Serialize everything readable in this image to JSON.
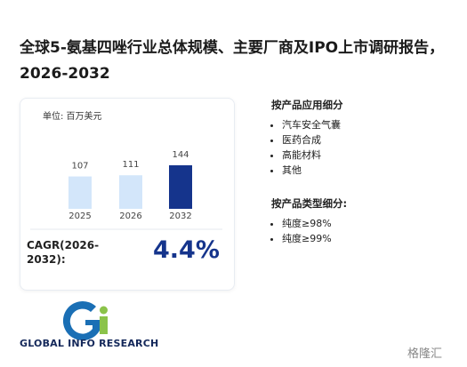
{
  "title": "全球5-氨基四唑行业总体规模、主要厂商及IPO上市调研报告，2026-2032",
  "chart_data": {
    "type": "bar",
    "unit": "单位: 百万美元",
    "categories": [
      "2025",
      "2026",
      "2032"
    ],
    "values": [
      107,
      111,
      144
    ],
    "colors": [
      "#d3e6fa",
      "#d3e6fa",
      "#15348c"
    ]
  },
  "cagr": {
    "label": "CAGR(2026-2032):",
    "value": "4.4%"
  },
  "segments": [
    {
      "heading": "按产品应用细分",
      "items": [
        "汽车安全气囊",
        "医药合成",
        "高能材料",
        "其他"
      ]
    },
    {
      "heading": "按产品类型细分:",
      "items": [
        "纯度≥98%",
        "纯度≥99%"
      ]
    }
  ],
  "logo": "GLOBAL INFO RESEARCH",
  "source": "格隆汇"
}
